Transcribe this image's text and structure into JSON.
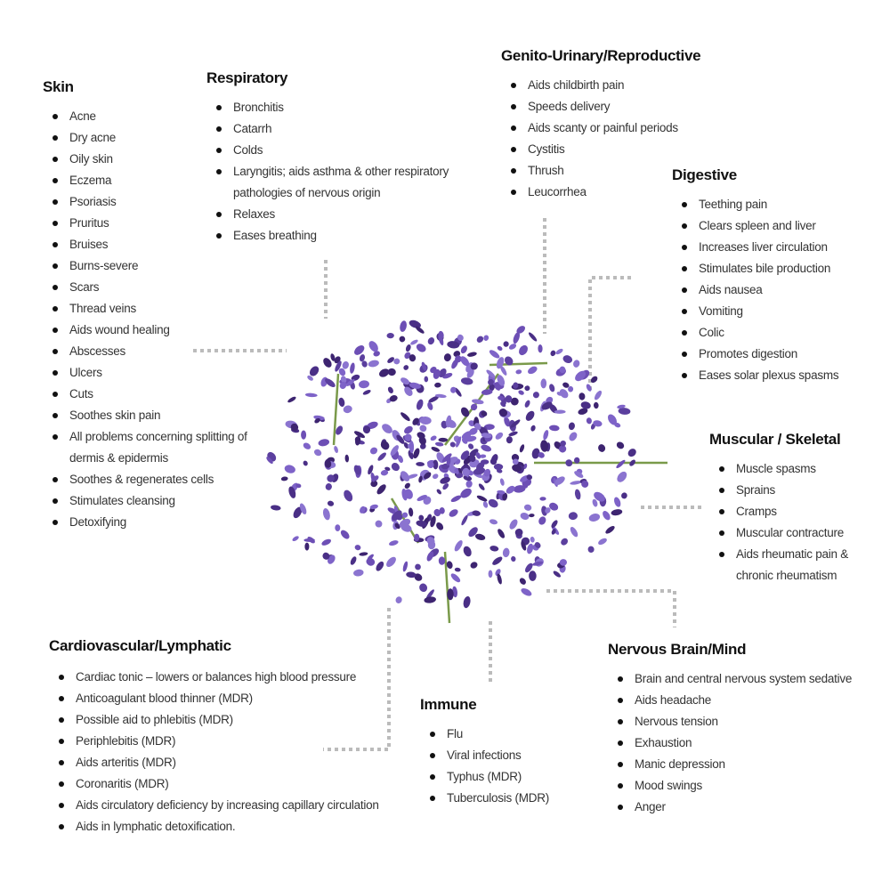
{
  "sections": [
    {
      "title": "Skin",
      "items": [
        "Acne",
        "Dry acne",
        "Oily skin",
        "Eczema",
        "Psoriasis",
        "Pruritus",
        "Bruises",
        "Burns-severe",
        "Scars",
        "Thread veins",
        "Aids wound healing",
        "Abscesses",
        "Ulcers",
        "Cuts",
        "Soothes skin pain",
        "All problems concerning splitting of dermis & epidermis",
        "Soothes & regenerates cells",
        "Stimulates cleansing",
        "Detoxifying"
      ]
    },
    {
      "title": "Respiratory",
      "items": [
        "Bronchitis",
        "Catarrh",
        "Colds",
        "Laryngitis; aids asthma & other respiratory pathologies of nervous origin",
        "Relaxes",
        "Eases breathing"
      ]
    },
    {
      "title": "Genito-Urinary/Reproductive",
      "items": [
        "Aids childbirth pain",
        "Speeds delivery",
        "Aids scanty or painful periods",
        "Cystitis",
        "Thrush",
        "Leucorrhea"
      ]
    },
    {
      "title": "Digestive",
      "items": [
        "Teething pain",
        "Clears spleen and liver",
        "Increases liver circulation",
        "Stimulates bile production",
        "Aids nausea",
        "Vomiting",
        "Colic",
        "Promotes digestion",
        "Eases solar plexus spasms"
      ]
    },
    {
      "title": "Muscular / Skeletal",
      "items": [
        "Muscle spasms",
        "Sprains",
        "Cramps",
        "Muscular contracture",
        "Aids rheumatic pain & chronic rheumatism"
      ]
    },
    {
      "title": "Cardiovascular/Lymphatic",
      "items": [
        "Cardiac tonic – lowers or balances high blood pressure",
        "Anticoagulant blood thinner (MDR)",
        "Possible aid to phlebitis (MDR)",
        "Periphlebitis (MDR)",
        "Aids arteritis (MDR)",
        "Coronaritis (MDR)",
        "Aids circulatory deficiency by increasing capillary circulation",
        "Aids in lymphatic detoxification."
      ]
    },
    {
      "title": "Immune",
      "items": [
        "Flu",
        "Viral infections",
        "Typhus (MDR)",
        "Tuberculosis (MDR)"
      ]
    },
    {
      "title": "Nervous Brain/Mind",
      "items": [
        "Brain and central nervous system sedative",
        "Aids headache",
        "Nervous tension",
        "Exhaustion",
        "Manic depression",
        "Mood swings",
        "Anger"
      ]
    }
  ]
}
